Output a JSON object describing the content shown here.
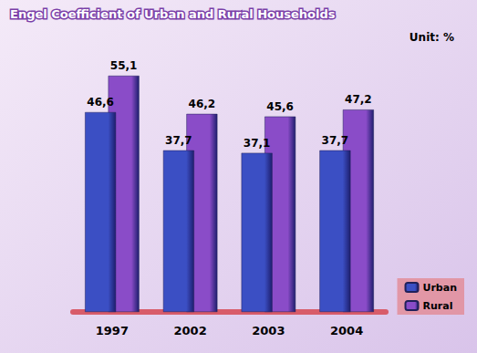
{
  "chart_data": {
    "type": "bar",
    "title": "Engel Coefficient of Urban and Rural Households",
    "subtitle": "Unit: %",
    "categories": [
      "1997",
      "2002",
      "2003",
      "2004"
    ],
    "series": [
      {
        "name": "Urban",
        "color": "#3b4fc4",
        "values": [
          46.6,
          37.7,
          37.1,
          37.7
        ],
        "value_labels": [
          "46,6",
          "37,7",
          "37,1",
          "37,7"
        ]
      },
      {
        "name": "Rural",
        "color": "#8a4cc8",
        "values": [
          55.1,
          46.2,
          45.6,
          47.2
        ],
        "value_labels": [
          "55,1",
          "46,2",
          "45,6",
          "47,2"
        ]
      }
    ],
    "data_labels": true,
    "legend": "bottom-right",
    "tick_labels": "x",
    "grid": false
  }
}
